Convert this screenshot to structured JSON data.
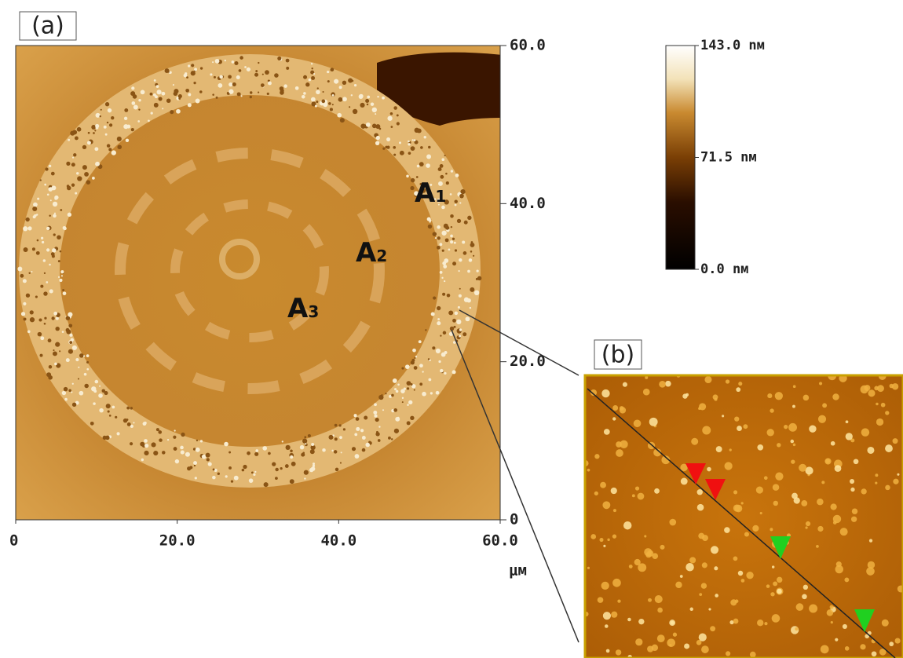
{
  "panel_a": {
    "label": "(a)",
    "xlim": [
      0,
      60
    ],
    "ylim": [
      0,
      60
    ],
    "xticks": [
      0,
      {
        "value": 20,
        "label": "20.0"
      },
      {
        "value": 40,
        "label": "40.0"
      },
      {
        "value": 60,
        "label": "60.0"
      }
    ],
    "yticks": [
      0,
      {
        "value": 20,
        "label": "20.0"
      },
      {
        "value": 40,
        "label": "40.0"
      },
      {
        "value": 60,
        "label": "60.0"
      }
    ],
    "unit": "μм",
    "annotations": [
      {
        "text": "A",
        "sub": "1"
      },
      {
        "text": "A",
        "sub": "2"
      },
      {
        "text": "A",
        "sub": "3"
      }
    ],
    "colorbar": {
      "lim": [
        0,
        143
      ],
      "ticks": [
        {
          "value": 143,
          "label": "143.0 nм"
        },
        {
          "value": 71.5,
          "label": "71.5 nм"
        },
        {
          "value": 0,
          "label": "0.0 nм"
        }
      ]
    }
  },
  "panel_b": {
    "label": "(b)"
  }
}
